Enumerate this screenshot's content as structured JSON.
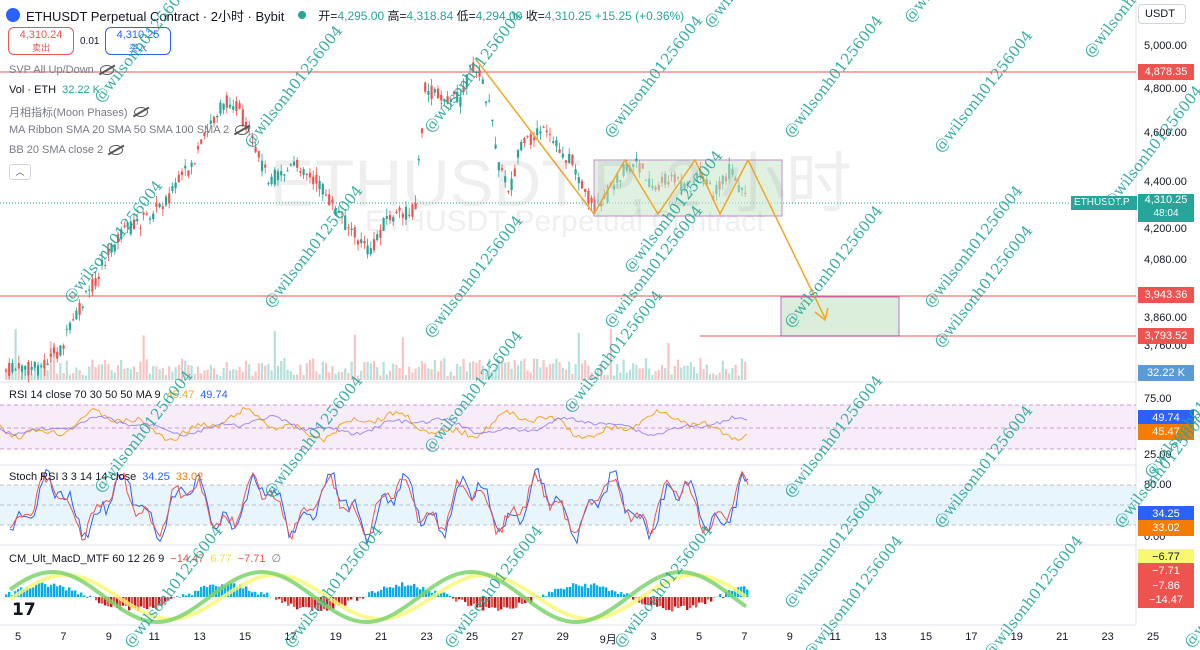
{
  "header": {
    "symbol_title": "ETHUSDT Perpetual Contract · 2小时 · Bybit",
    "ohlc": {
      "open_label": "开",
      "open": "4,295.00",
      "high_label": "高",
      "high": "4,318.84",
      "low_label": "低",
      "low": "4,294.00",
      "close_label": "收",
      "close": "4,310.25",
      "change": "+15.25 (+0.36%)"
    }
  },
  "trade": {
    "sell_price": "4,310.24",
    "sell_label": "卖出",
    "spread": "0.01",
    "buy_price": "4,310.25",
    "buy_label": "买入"
  },
  "currency": "USDT",
  "legends": {
    "svp": "SVP All Up/Down",
    "vol_name": "Vol · ETH",
    "vol_value": "32.22 K",
    "moon": "月相指标(Moon Phases)",
    "ma_ribbon": "MA Ribbon SMA 20 SMA 50 SMA 100 SMA 2",
    "bb": "BB 20 SMA close 2",
    "rsi_name": "RSI 14 close 70 30 50 50 MA 9",
    "rsi_v1": "45.47",
    "rsi_v2": "49.74",
    "stoch_name": "Stoch RSI 3 3 14 14 close",
    "stoch_v1": "34.25",
    "stoch_v2": "33.02",
    "macd_name": "CM_Ult_MacD_MTF 60 12 26 9",
    "macd_v1": "−14.47",
    "macd_v2": "6.77",
    "macd_v3": "−7.71",
    "macd_v4": "∅"
  },
  "watermark": {
    "big_symbol": "ETHUSDT.P, 2 小时",
    "big_name": "ETHUSDT Perpetual Contract",
    "handle": "@wilsonh01256004"
  },
  "price_axis": [
    "5,000.00",
    "4,800.00",
    "4,600.00",
    "4,400.00",
    "4,200.00",
    "4,080.00",
    "3,860.00",
    "3,760.00"
  ],
  "price_tags": {
    "resistance": "4,878.35",
    "symbol_tag": "ETHUSDT.P",
    "last": "4,310.25",
    "countdown": "48:04",
    "support1": "3,943.36",
    "support2": "3,793.52",
    "volume": "32.22 K"
  },
  "rsi_axis": [
    "75.00",
    "25.00"
  ],
  "rsi_tags": [
    "49.74",
    "45.47"
  ],
  "stoch_axis": [
    "80.00",
    "0.00"
  ],
  "stoch_tags": [
    "34.25",
    "33.02"
  ],
  "macd_tags": [
    "−6.77",
    "−7.71",
    "−7.86",
    "−14.47"
  ],
  "time_axis": [
    "5",
    "7",
    "9",
    "11",
    "13",
    "15",
    "17",
    "19",
    "21",
    "23",
    "25",
    "27",
    "29",
    "9月",
    "3",
    "5",
    "7",
    "9",
    "11",
    "13",
    "15",
    "17",
    "19",
    "21",
    "23",
    "25"
  ],
  "colors": {
    "up": "#26a69a",
    "down": "#ef5350",
    "accent": "#2962ff",
    "drawing": "#f5a623",
    "box_border": "#9c27b0",
    "box_fill": "#c8e6c9"
  }
}
